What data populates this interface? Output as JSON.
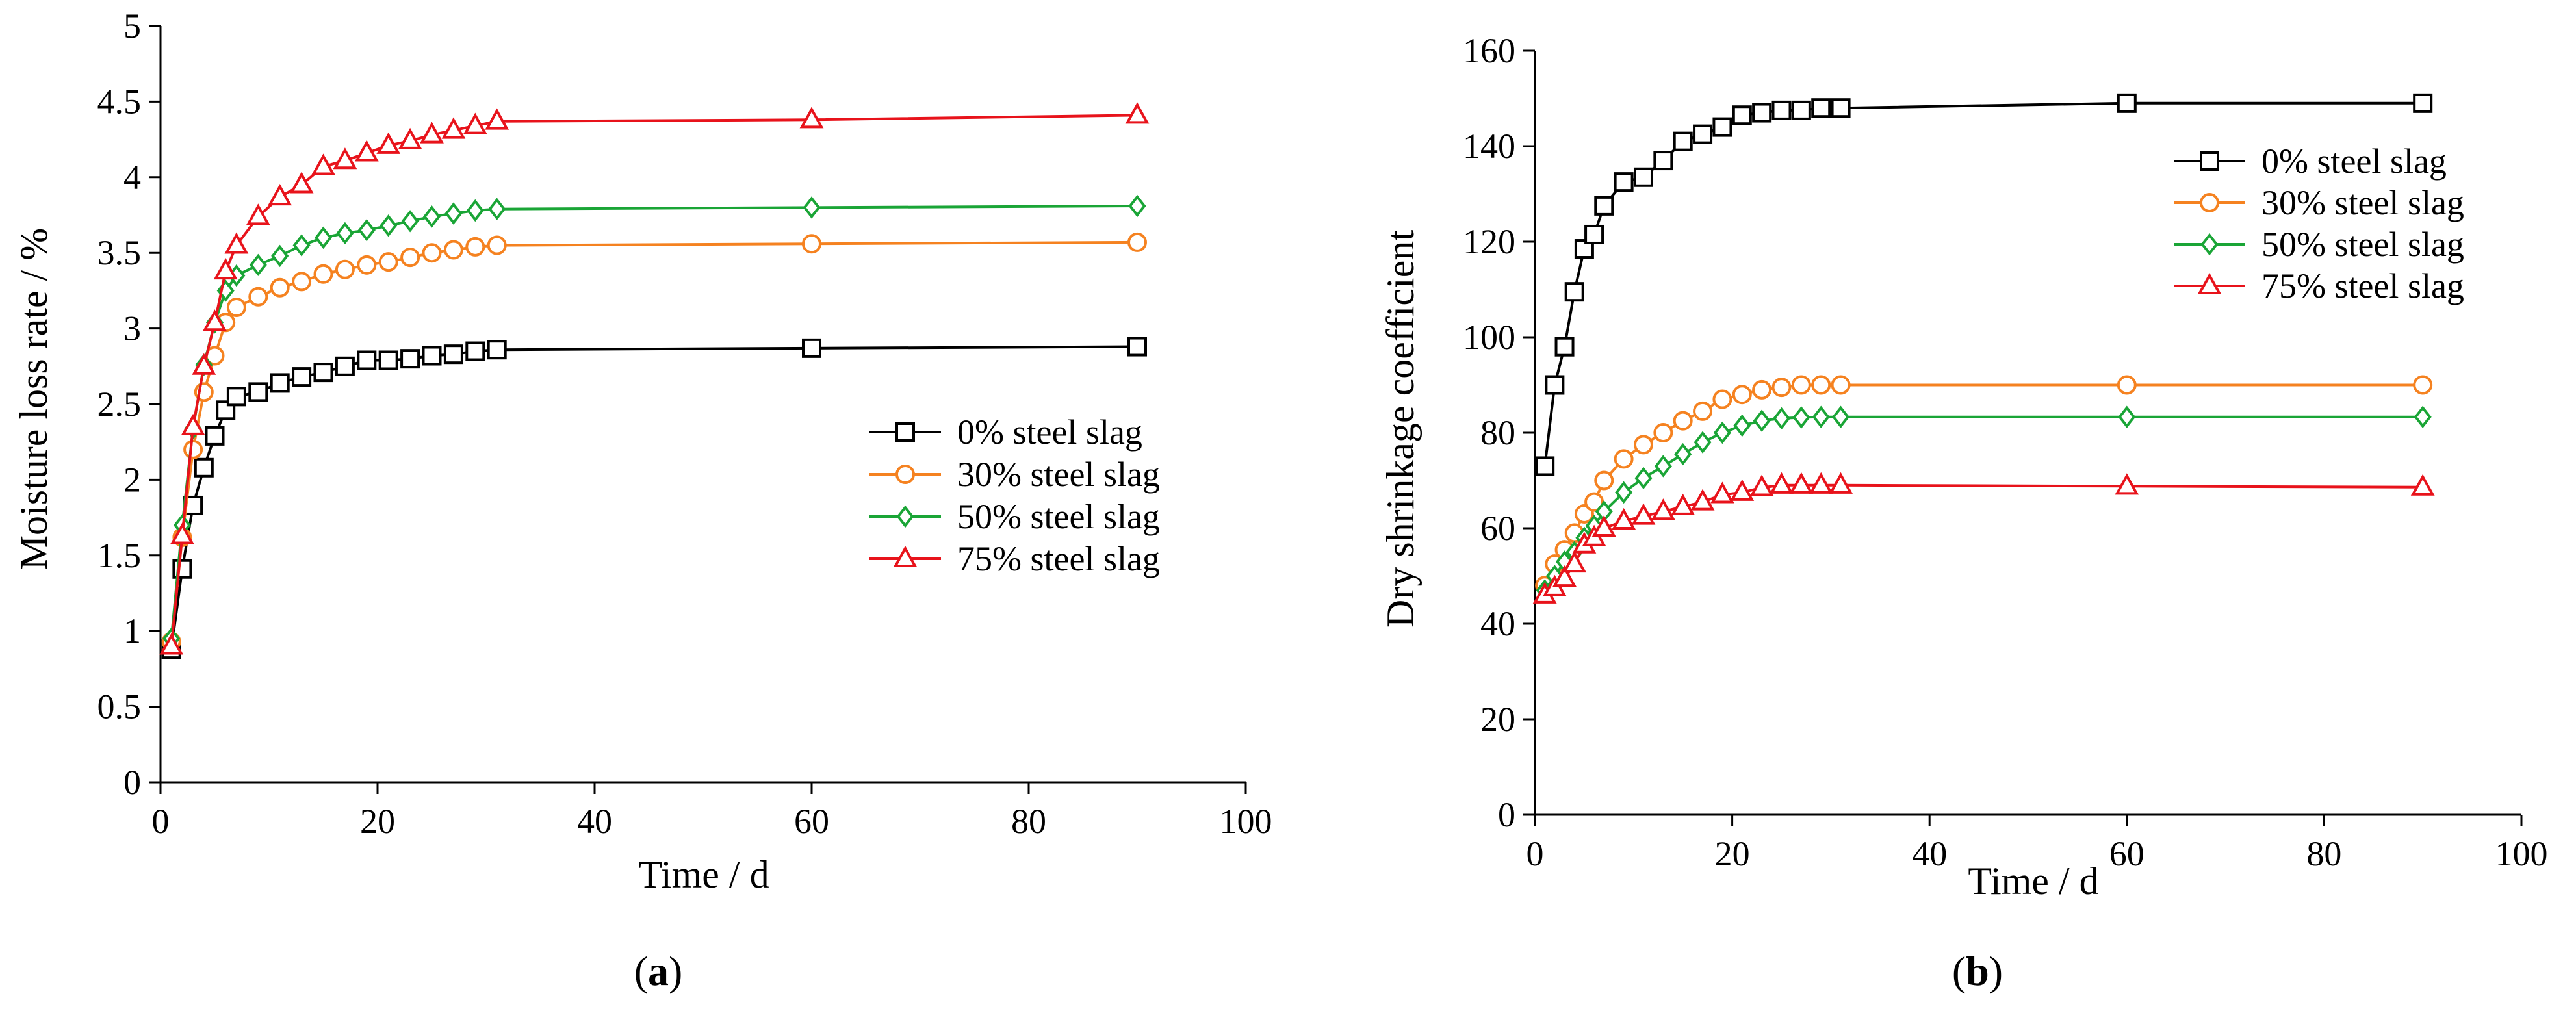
{
  "chart_data": [
    {
      "type": "line",
      "panel_label": "a",
      "xlabel": "Time / d",
      "ylabel": "Moisture loss rate / %",
      "xlim": [
        0,
        100
      ],
      "ylim": [
        0,
        5
      ],
      "xticks": [
        "0",
        "20",
        "40",
        "60",
        "80",
        "100"
      ],
      "yticks": [
        "0",
        "0.5",
        "1",
        "1.5",
        "2",
        "2.5",
        "3",
        "3.5",
        "4",
        "4.5",
        "5"
      ],
      "grid": false,
      "legend_position": "center-right",
      "series": [
        {
          "name": "0% steel slag",
          "color": "#000000",
          "marker": "square",
          "x": [
            1,
            2,
            3,
            4,
            5,
            6,
            7,
            9,
            11,
            13,
            15,
            17,
            19,
            21,
            23,
            25,
            27,
            29,
            31,
            60,
            90
          ],
          "y": [
            0.88,
            1.41,
            1.83,
            2.08,
            2.29,
            2.46,
            2.55,
            2.58,
            2.64,
            2.68,
            2.71,
            2.75,
            2.79,
            2.79,
            2.8,
            2.82,
            2.83,
            2.85,
            2.86,
            2.87,
            2.88
          ]
        },
        {
          "name": "30% steel slag",
          "color": "#F58220",
          "marker": "circle",
          "x": [
            1,
            2,
            3,
            4,
            5,
            6,
            7,
            9,
            11,
            13,
            15,
            17,
            19,
            21,
            23,
            25,
            27,
            29,
            31,
            60,
            90
          ],
          "y": [
            0.93,
            1.62,
            2.2,
            2.58,
            2.82,
            3.04,
            3.14,
            3.21,
            3.27,
            3.31,
            3.36,
            3.39,
            3.42,
            3.44,
            3.47,
            3.5,
            3.52,
            3.54,
            3.55,
            3.56,
            3.57
          ]
        },
        {
          "name": "50% steel slag",
          "color": "#1AA536",
          "marker": "diamond",
          "x": [
            1,
            2,
            3,
            4,
            5,
            6,
            7,
            9,
            11,
            13,
            15,
            17,
            19,
            21,
            23,
            25,
            27,
            29,
            31,
            60,
            90
          ],
          "y": [
            0.95,
            1.7,
            2.34,
            2.76,
            3.04,
            3.25,
            3.35,
            3.42,
            3.48,
            3.55,
            3.6,
            3.63,
            3.65,
            3.68,
            3.71,
            3.74,
            3.76,
            3.78,
            3.79,
            3.8,
            3.81
          ]
        },
        {
          "name": "75% steel slag",
          "color": "#E8131B",
          "marker": "triangle",
          "x": [
            1,
            2,
            3,
            4,
            5,
            6,
            7,
            9,
            11,
            13,
            15,
            17,
            19,
            21,
            23,
            25,
            27,
            29,
            31,
            60,
            90
          ],
          "y": [
            0.9,
            1.63,
            2.35,
            2.75,
            3.04,
            3.38,
            3.55,
            3.74,
            3.87,
            3.95,
            4.07,
            4.11,
            4.16,
            4.21,
            4.24,
            4.28,
            4.31,
            4.34,
            4.37,
            4.38,
            4.41
          ]
        }
      ]
    },
    {
      "type": "line",
      "panel_label": "b",
      "xlabel": "Time / d",
      "ylabel": "Dry shrinkage coefficient",
      "xlim": [
        0,
        100
      ],
      "ylim": [
        0,
        160
      ],
      "xticks": [
        "0",
        "20",
        "40",
        "60",
        "80",
        "100"
      ],
      "yticks": [
        "0",
        "20",
        "40",
        "60",
        "80",
        "100",
        "120",
        "140",
        "160"
      ],
      "grid": false,
      "legend_position": "top-right",
      "series": [
        {
          "name": "0% steel slag",
          "color": "#000000",
          "marker": "square",
          "x": [
            1,
            2,
            3,
            4,
            5,
            6,
            7,
            9,
            11,
            13,
            15,
            17,
            19,
            21,
            23,
            25,
            27,
            29,
            31,
            60,
            90
          ],
          "y": [
            73,
            90,
            98,
            109.5,
            118.5,
            121.5,
            127.5,
            132.5,
            133.5,
            137,
            141,
            142.5,
            144,
            146.5,
            147,
            147.5,
            147.5,
            148,
            148,
            149,
            149
          ]
        },
        {
          "name": "30% steel slag",
          "color": "#F58220",
          "marker": "circle",
          "x": [
            1,
            2,
            3,
            4,
            5,
            6,
            7,
            9,
            11,
            13,
            15,
            17,
            19,
            21,
            23,
            25,
            27,
            29,
            31,
            60,
            90
          ],
          "y": [
            48,
            52.5,
            55.5,
            59,
            63,
            65.5,
            70,
            74.5,
            77.5,
            80,
            82.5,
            84.5,
            87,
            88,
            89,
            89.5,
            90,
            90,
            90,
            90,
            90
          ]
        },
        {
          "name": "50% steel slag",
          "color": "#1AA536",
          "marker": "diamond",
          "x": [
            1,
            2,
            3,
            4,
            5,
            6,
            7,
            9,
            11,
            13,
            15,
            17,
            19,
            21,
            23,
            25,
            27,
            29,
            31,
            60,
            90
          ],
          "y": [
            47,
            50,
            53,
            55,
            58,
            60.5,
            63.5,
            67.5,
            70.5,
            73,
            75.5,
            78,
            80,
            81.5,
            82.5,
            83,
            83.2,
            83.3,
            83.3,
            83.3,
            83.3
          ]
        },
        {
          "name": "75% steel slag",
          "color": "#E8131B",
          "marker": "triangle",
          "x": [
            1,
            2,
            3,
            4,
            5,
            6,
            7,
            9,
            11,
            13,
            15,
            17,
            19,
            21,
            23,
            25,
            27,
            29,
            31,
            60,
            90
          ],
          "y": [
            46,
            47.5,
            49.5,
            52.5,
            56.5,
            58,
            60,
            61.5,
            62.5,
            63.5,
            64.5,
            65.5,
            67,
            67.5,
            68.5,
            69,
            69,
            69,
            69,
            68.8,
            68.6
          ]
        }
      ]
    }
  ]
}
